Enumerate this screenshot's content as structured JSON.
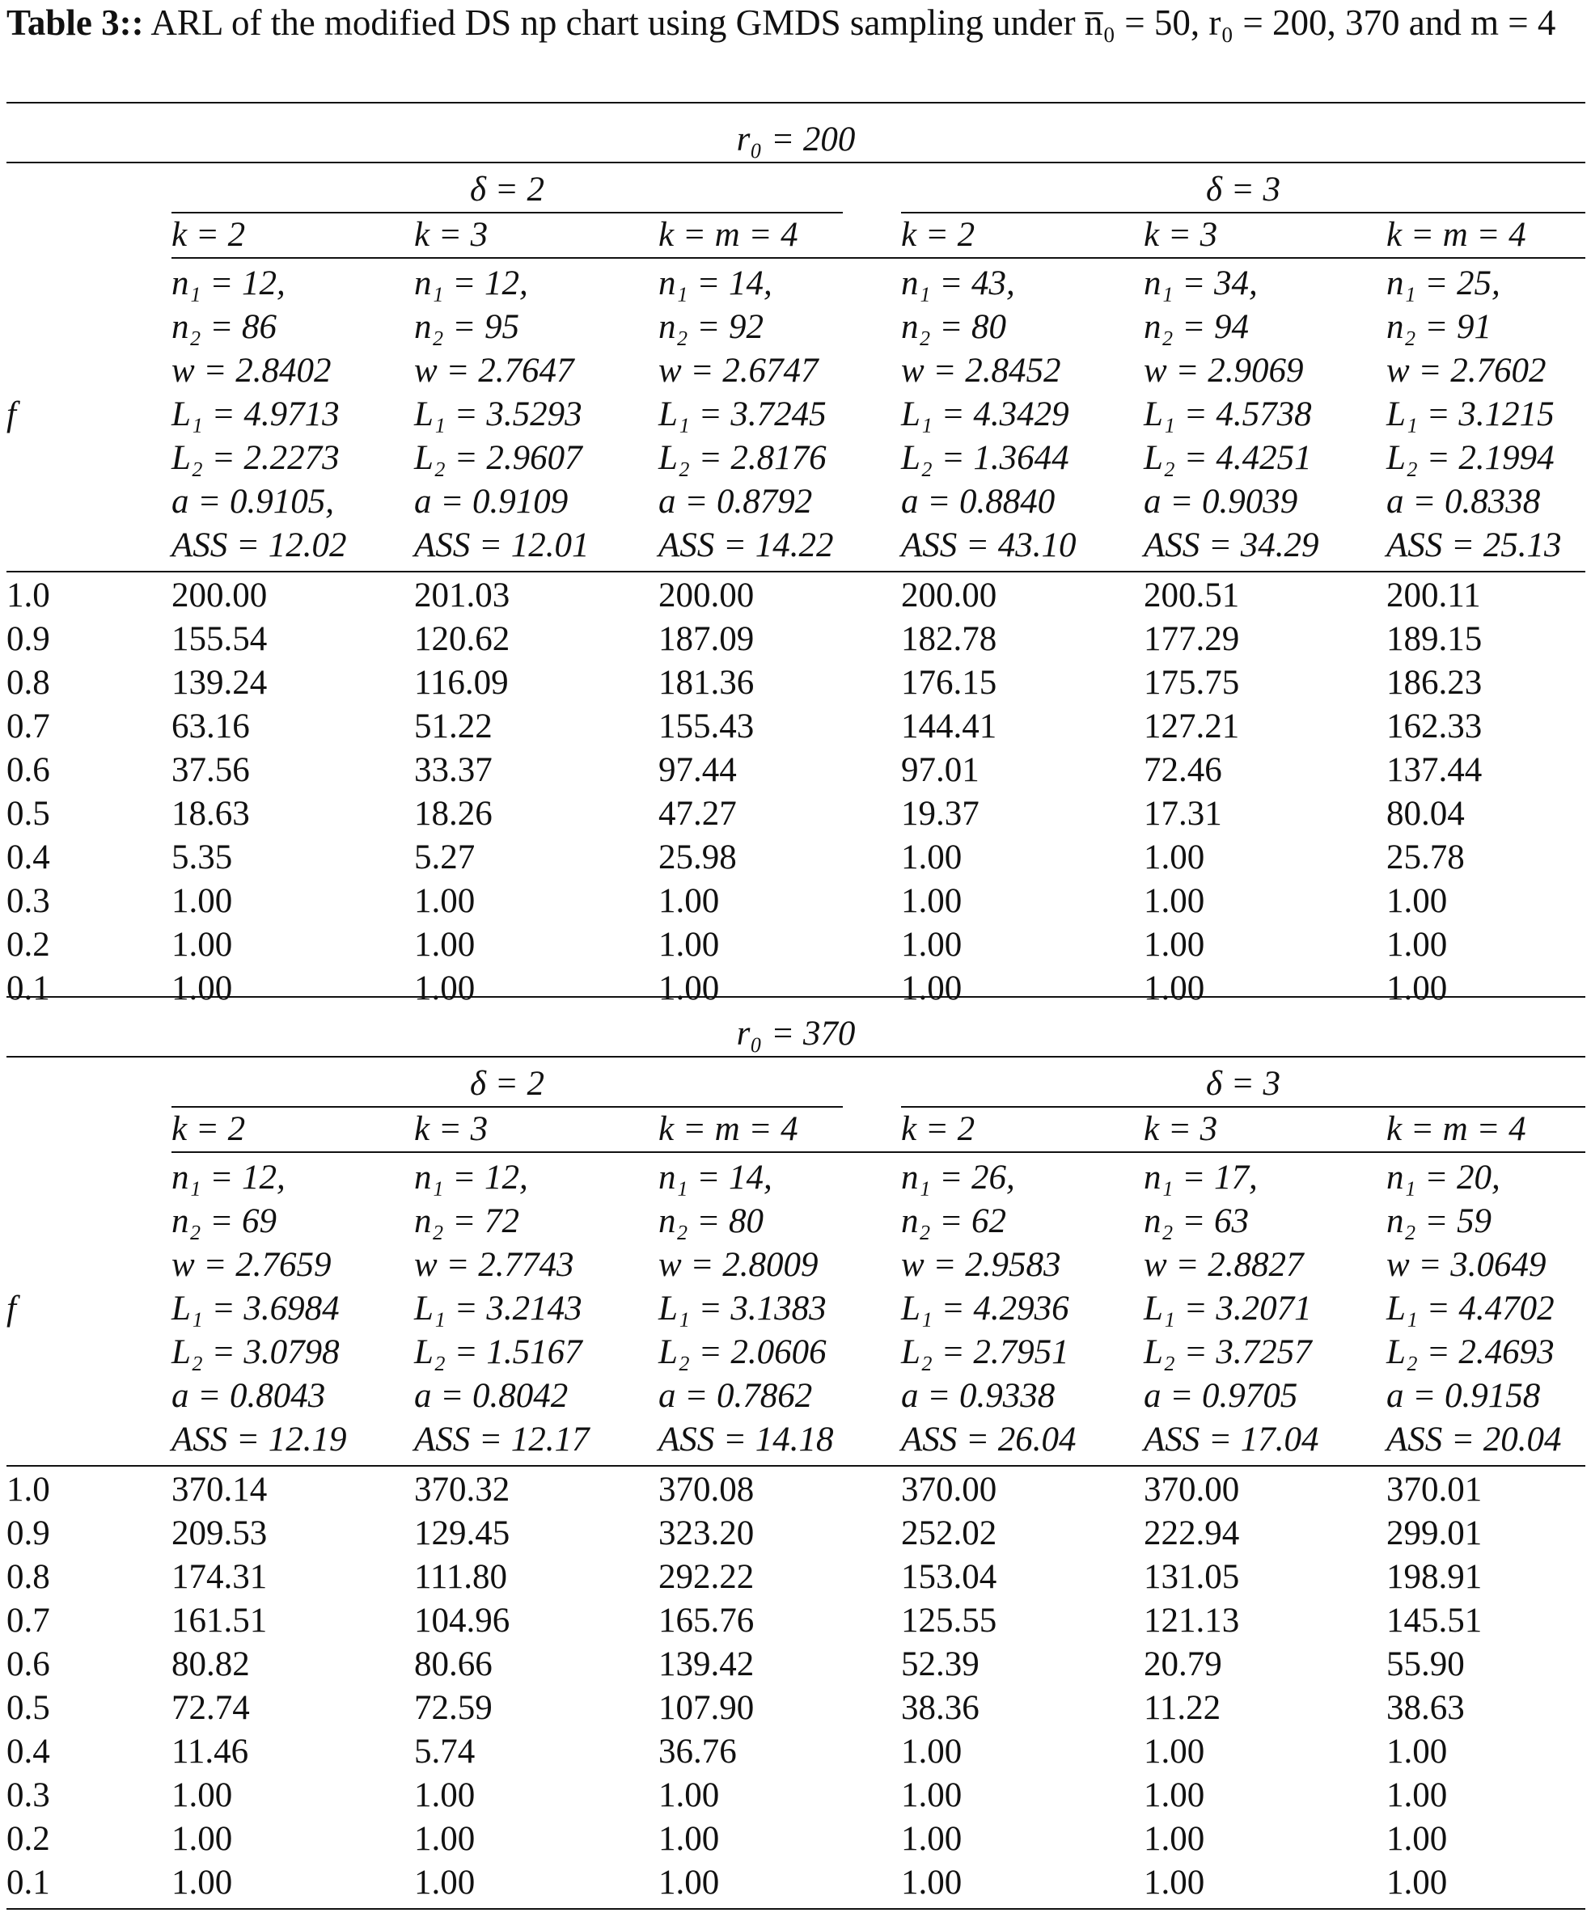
{
  "caption": {
    "label": "Table 3::",
    "text": "ARL of the modified DS np chart using GMDS sampling under n̅₀ = 50, r₀ = 200, 370 and m = 4"
  },
  "row_header": "f",
  "blocks": [
    {
      "title": "r₀ = 200",
      "delta_groups": [
        "δ = 2",
        "δ = 3"
      ],
      "k_headers": [
        "k = 2",
        "k = 3",
        "k = m = 4",
        "k = 2",
        "k = 3",
        "k = m = 4"
      ],
      "params": [
        [
          "n₁ = 12,",
          "n₂ = 86",
          "w = 2.8402",
          "L₁ = 4.9713",
          "L₂ = 2.2273",
          "a = 0.9105,",
          "ASS = 12.02"
        ],
        [
          "n₁ = 12,",
          "n₂ = 95",
          "w = 2.7647",
          "L₁ = 3.5293",
          "L₂ = 2.9607",
          "a = 0.9109",
          "ASS = 12.01"
        ],
        [
          "n₁ = 14,",
          "n₂ = 92",
          "w = 2.6747",
          "L₁ = 3.7245",
          "L₂ = 2.8176",
          "a = 0.8792",
          "ASS = 14.22"
        ],
        [
          "n₁ = 43,",
          "n₂ = 80",
          "w = 2.8452",
          "L₁ = 4.3429",
          "L₂ = 1.3644",
          "a = 0.8840",
          "ASS = 43.10"
        ],
        [
          "n₁ = 34,",
          "n₂ = 94",
          "w = 2.9069",
          "L₁ = 4.5738",
          "L₂ = 4.4251",
          "a = 0.9039",
          "ASS = 34.29"
        ],
        [
          "n₁ = 25,",
          "n₂ = 91",
          "w = 2.7602",
          "L₁ = 3.1215",
          "L₂ = 2.1994",
          "a = 0.8338",
          "ASS = 25.13"
        ]
      ],
      "rows": [
        [
          "1.0",
          "200.00",
          "201.03",
          "200.00",
          "200.00",
          "200.51",
          "200.11"
        ],
        [
          "0.9",
          "155.54",
          "120.62",
          "187.09",
          "182.78",
          "177.29",
          "189.15"
        ],
        [
          "0.8",
          "139.24",
          "116.09",
          "181.36",
          "176.15",
          "175.75",
          "186.23"
        ],
        [
          "0.7",
          "63.16",
          "51.22",
          "155.43",
          "144.41",
          "127.21",
          "162.33"
        ],
        [
          "0.6",
          "37.56",
          "33.37",
          "97.44",
          "97.01",
          "72.46",
          "137.44"
        ],
        [
          "0.5",
          "18.63",
          "18.26",
          "47.27",
          "19.37",
          "17.31",
          "80.04"
        ],
        [
          "0.4",
          "5.35",
          "5.27",
          "25.98",
          "1.00",
          "1.00",
          "25.78"
        ],
        [
          "0.3",
          "1.00",
          "1.00",
          "1.00",
          "1.00",
          "1.00",
          "1.00"
        ],
        [
          "0.2",
          "1.00",
          "1.00",
          "1.00",
          "1.00",
          "1.00",
          "1.00"
        ],
        [
          "0.1",
          "1.00",
          "1.00",
          "1.00",
          "1.00",
          "1.00",
          "1.00"
        ]
      ]
    },
    {
      "title": "r₀ = 370",
      "delta_groups": [
        "δ = 2",
        "δ = 3"
      ],
      "k_headers": [
        "k = 2",
        "k = 3",
        "k = m = 4",
        "k = 2",
        "k = 3",
        "k = m = 4"
      ],
      "params": [
        [
          "n₁ = 12,",
          "n₂ = 69",
          "w = 2.7659",
          "L₁ = 3.6984",
          "L₂ = 3.0798",
          "a = 0.8043",
          "ASS = 12.19"
        ],
        [
          "n₁ = 12,",
          "n₂ = 72",
          "w = 2.7743",
          "L₁ = 3.2143",
          "L₂ = 1.5167",
          "a = 0.8042",
          "ASS = 12.17"
        ],
        [
          "n₁ = 14,",
          "n₂ = 80",
          "w = 2.8009",
          "L₁ = 3.1383",
          "L₂ = 2.0606",
          "a = 0.7862",
          "ASS = 14.18"
        ],
        [
          "n₁ = 26,",
          "n₂ = 62",
          "w = 2.9583",
          "L₁ = 4.2936",
          "L₂ = 2.7951",
          "a = 0.9338",
          "ASS = 26.04"
        ],
        [
          "n₁ = 17,",
          "n₂ = 63",
          "w = 2.8827",
          "L₁ = 3.2071",
          "L₂ = 3.7257",
          "a = 0.9705",
          "ASS = 17.04"
        ],
        [
          "n₁ = 20,",
          "n₂ = 59",
          "w = 3.0649",
          "L₁ = 4.4702",
          "L₂ = 2.4693",
          "a = 0.9158",
          "ASS = 20.04"
        ]
      ],
      "rows": [
        [
          "1.0",
          "370.14",
          "370.32",
          "370.08",
          "370.00",
          "370.00",
          "370.01"
        ],
        [
          "0.9",
          "209.53",
          "129.45",
          "323.20",
          "252.02",
          "222.94",
          "299.01"
        ],
        [
          "0.8",
          "174.31",
          "111.80",
          "292.22",
          "153.04",
          "131.05",
          "198.91"
        ],
        [
          "0.7",
          "161.51",
          "104.96",
          "165.76",
          "125.55",
          "121.13",
          "145.51"
        ],
        [
          "0.6",
          "80.82",
          "80.66",
          "139.42",
          "52.39",
          "20.79",
          "55.90"
        ],
        [
          "0.5",
          "72.74",
          "72.59",
          "107.90",
          "38.36",
          "11.22",
          "38.63"
        ],
        [
          "0.4",
          "11.46",
          "5.74",
          "36.76",
          "1.00",
          "1.00",
          "1.00"
        ],
        [
          "0.3",
          "1.00",
          "1.00",
          "1.00",
          "1.00",
          "1.00",
          "1.00"
        ],
        [
          "0.2",
          "1.00",
          "1.00",
          "1.00",
          "1.00",
          "1.00",
          "1.00"
        ],
        [
          "0.1",
          "1.00",
          "1.00",
          "1.00",
          "1.00",
          "1.00",
          "1.00"
        ]
      ]
    }
  ]
}
